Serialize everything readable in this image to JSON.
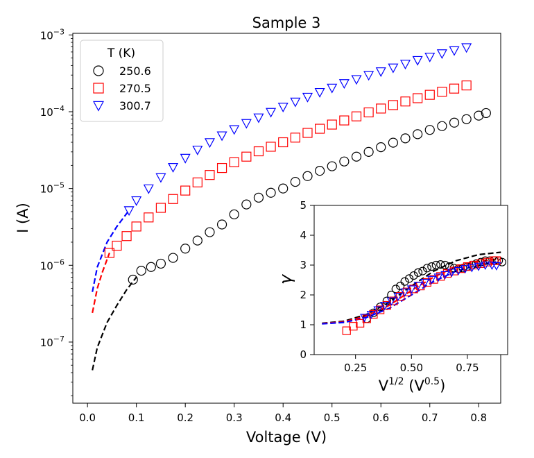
{
  "chart_data": [
    {
      "type": "scatter",
      "title": "Sample 3",
      "xlabel": "Voltage (V)",
      "ylabel": "I (A)",
      "yscale": "log",
      "xlim": [
        -0.03,
        0.845
      ],
      "ylim": [
        1.6e-08,
        0.00105
      ],
      "xticks": [
        0.0,
        0.1,
        0.2,
        0.3,
        0.4,
        0.5,
        0.6,
        0.7,
        0.8
      ],
      "xtick_labels": [
        "0.0",
        "0.1",
        "0.2",
        "0.3",
        "0.4",
        "0.5",
        "0.6",
        "0.7",
        "0.8"
      ],
      "yticks": [
        1e-07,
        1e-06,
        1e-05,
        0.0001,
        0.001
      ],
      "ytick_labels": [
        {
          "base": "10",
          "exp": "−7"
        },
        {
          "base": "10",
          "exp": "−6"
        },
        {
          "base": "10",
          "exp": "−5"
        },
        {
          "base": "10",
          "exp": "−4"
        },
        {
          "base": "10",
          "exp": "−3"
        }
      ],
      "legend": {
        "title": "T (K)",
        "position": "top-left"
      },
      "series": [
        {
          "name": "250.6",
          "color": "#000000",
          "marker": "circle",
          "x": [
            0.093,
            0.11,
            0.13,
            0.15,
            0.175,
            0.2,
            0.225,
            0.25,
            0.275,
            0.3,
            0.325,
            0.35,
            0.375,
            0.4,
            0.425,
            0.45,
            0.475,
            0.5,
            0.525,
            0.55,
            0.575,
            0.6,
            0.625,
            0.65,
            0.675,
            0.7,
            0.725,
            0.75,
            0.775,
            0.8,
            0.815
          ],
          "y": [
            6.5e-07,
            8.5e-07,
            9.5e-07,
            1.05e-06,
            1.25e-06,
            1.65e-06,
            2.1e-06,
            2.7e-06,
            3.4e-06,
            4.6e-06,
            6.2e-06,
            7.6e-06,
            8.8e-06,
            1e-05,
            1.22e-05,
            1.45e-05,
            1.7e-05,
            1.95e-05,
            2.25e-05,
            2.6e-05,
            3e-05,
            3.45e-05,
            3.95e-05,
            4.5e-05,
            5.1e-05,
            5.8e-05,
            6.5e-05,
            7.2e-05,
            8e-05,
            8.9e-05,
            9.6e-05
          ],
          "fit": {
            "x": [
              0.01,
              0.02,
              0.04,
              0.06,
              0.08,
              0.1
            ],
            "y": [
              4.3e-08,
              8.5e-08,
              1.8e-07,
              3e-07,
              4.8e-07,
              7e-07
            ]
          }
        },
        {
          "name": "270.5",
          "color": "#ff0000",
          "marker": "square",
          "x": [
            0.045,
            0.06,
            0.08,
            0.1,
            0.125,
            0.15,
            0.175,
            0.2,
            0.225,
            0.25,
            0.275,
            0.3,
            0.325,
            0.35,
            0.375,
            0.4,
            0.425,
            0.45,
            0.475,
            0.5,
            0.525,
            0.55,
            0.575,
            0.6,
            0.625,
            0.65,
            0.675,
            0.7,
            0.725,
            0.75,
            0.775
          ],
          "y": [
            1.45e-06,
            1.8e-06,
            2.4e-06,
            3.2e-06,
            4.2e-06,
            5.6e-06,
            7.3e-06,
            9.4e-06,
            1.2e-05,
            1.5e-05,
            1.85e-05,
            2.2e-05,
            2.6e-05,
            3.05e-05,
            3.5e-05,
            4e-05,
            4.6e-05,
            5.3e-05,
            6e-05,
            6.8e-05,
            7.7e-05,
            8.7e-05,
            9.8e-05,
            0.00011,
            0.000122,
            0.000136,
            0.00015,
            0.000166,
            0.000182,
            0.0002,
            0.00022
          ],
          "fit": {
            "x": [
              0.01,
              0.02,
              0.03,
              0.045
            ],
            "y": [
              2.4e-07,
              5e-07,
              8e-07,
              1.45e-06
            ]
          }
        },
        {
          "name": "300.7",
          "color": "#0000ff",
          "marker": "triangle-down",
          "x": [
            0.085,
            0.1,
            0.125,
            0.15,
            0.175,
            0.2,
            0.225,
            0.25,
            0.275,
            0.3,
            0.325,
            0.35,
            0.375,
            0.4,
            0.425,
            0.45,
            0.475,
            0.5,
            0.525,
            0.55,
            0.575,
            0.6,
            0.625,
            0.65,
            0.675,
            0.7,
            0.725,
            0.75,
            0.775
          ],
          "y": [
            5.2e-06,
            7e-06,
            1e-05,
            1.4e-05,
            1.9e-05,
            2.5e-05,
            3.2e-05,
            4e-05,
            4.9e-05,
            5.9e-05,
            7.1e-05,
            8.4e-05,
            9.9e-05,
            0.000116,
            0.000135,
            0.000156,
            0.00018,
            0.000205,
            0.000235,
            0.000265,
            0.0003,
            0.000335,
            0.000375,
            0.00042,
            0.00047,
            0.00052,
            0.000575,
            0.00063,
            0.00069
          ],
          "fit": {
            "x": [
              0.01,
              0.02,
              0.04,
              0.06,
              0.085
            ],
            "y": [
              4.5e-07,
              9.5e-07,
              2e-06,
              3.2e-06,
              5.2e-06
            ]
          }
        }
      ]
    },
    {
      "type": "scatter",
      "title": "",
      "xlabel": {
        "base": "V",
        "exp1": "1/2",
        "mid": " (V",
        "exp2": "0.5",
        "end": ")"
      },
      "ylabel": "γ",
      "xlim": [
        0.065,
        0.93
      ],
      "ylim": [
        0,
        5
      ],
      "xticks": [
        0.25,
        0.5,
        0.75
      ],
      "xtick_labels": [
        "0.25",
        "0.50",
        "0.75"
      ],
      "yticks": [
        0,
        1,
        2,
        3,
        4,
        5
      ],
      "ytick_labels": [
        "0",
        "1",
        "2",
        "3",
        "4",
        "5"
      ],
      "series": [
        {
          "name": "250.6",
          "color": "#000000",
          "marker": "circle",
          "x": [
            0.3,
            0.33,
            0.36,
            0.39,
            0.41,
            0.43,
            0.45,
            0.47,
            0.49,
            0.51,
            0.53,
            0.55,
            0.57,
            0.59,
            0.61,
            0.63,
            0.65,
            0.67,
            0.69,
            0.71,
            0.73,
            0.75,
            0.77,
            0.79,
            0.81,
            0.83,
            0.85,
            0.87,
            0.89,
            0.905
          ],
          "y": [
            1.2,
            1.4,
            1.6,
            1.8,
            2.0,
            2.2,
            2.3,
            2.45,
            2.55,
            2.65,
            2.75,
            2.8,
            2.9,
            2.95,
            3.0,
            3.02,
            3.0,
            2.95,
            2.9,
            2.88,
            2.9,
            2.95,
            3.0,
            3.05,
            3.1,
            3.15,
            3.15,
            3.15,
            3.15,
            3.1
          ]
        },
        {
          "name": "270.5",
          "color": "#ff0000",
          "marker": "square",
          "x": [
            0.21,
            0.24,
            0.27,
            0.3,
            0.33,
            0.36,
            0.39,
            0.42,
            0.45,
            0.48,
            0.51,
            0.54,
            0.57,
            0.6,
            0.63,
            0.66,
            0.69,
            0.72,
            0.75,
            0.78,
            0.81,
            0.84,
            0.87,
            0.88
          ],
          "y": [
            0.8,
            0.95,
            1.05,
            1.2,
            1.35,
            1.5,
            1.65,
            1.8,
            1.95,
            2.1,
            2.2,
            2.3,
            2.42,
            2.52,
            2.62,
            2.72,
            2.8,
            2.88,
            2.95,
            3.0,
            3.05,
            3.1,
            3.15,
            3.15
          ]
        },
        {
          "name": "300.7",
          "color": "#0000ff",
          "marker": "triangle-down",
          "x": [
            0.29,
            0.32,
            0.35,
            0.38,
            0.41,
            0.44,
            0.47,
            0.5,
            0.53,
            0.56,
            0.59,
            0.62,
            0.65,
            0.68,
            0.71,
            0.74,
            0.77,
            0.8,
            0.83,
            0.86,
            0.88
          ],
          "y": [
            1.25,
            1.35,
            1.5,
            1.65,
            1.8,
            1.95,
            2.1,
            2.2,
            2.32,
            2.42,
            2.52,
            2.6,
            2.68,
            2.76,
            2.82,
            2.88,
            2.92,
            2.96,
            3.0,
            3.0,
            2.98
          ]
        }
      ],
      "fits": [
        {
          "name": "250.6",
          "color": "#000000",
          "x": [
            0.1,
            0.2,
            0.3,
            0.4,
            0.5,
            0.6,
            0.7,
            0.8,
            0.9
          ],
          "y": [
            1.05,
            1.12,
            1.35,
            1.75,
            2.3,
            2.8,
            3.15,
            3.35,
            3.43
          ]
        },
        {
          "name": "270.5",
          "color": "#ff0000",
          "x": [
            0.1,
            0.2,
            0.3,
            0.4,
            0.5,
            0.6,
            0.7,
            0.8,
            0.88
          ],
          "y": [
            1.04,
            1.1,
            1.3,
            1.65,
            2.15,
            2.6,
            2.95,
            3.12,
            3.2
          ]
        },
        {
          "name": "300.7",
          "color": "#0000ff",
          "x": [
            0.1,
            0.2,
            0.3,
            0.4,
            0.5,
            0.6,
            0.7,
            0.8,
            0.88
          ],
          "y": [
            1.03,
            1.08,
            1.25,
            1.55,
            2.0,
            2.45,
            2.8,
            3.0,
            3.1
          ]
        }
      ]
    }
  ]
}
